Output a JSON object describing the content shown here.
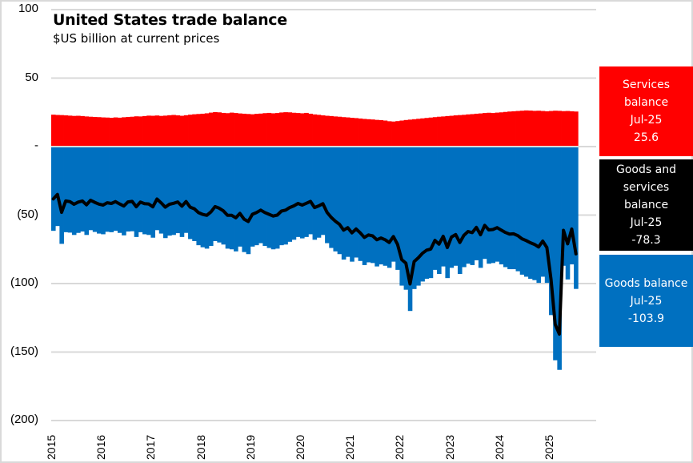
{
  "chart_data": {
    "type": "bar+line",
    "title": "United States trade balance",
    "subtitle": "$US billion at current prices",
    "xlabel": "",
    "ylabel": "",
    "ylim": [
      -200,
      100
    ],
    "yticks": [
      100,
      50,
      0,
      -50,
      -100,
      -150,
      -200
    ],
    "ytick_labels": [
      "100",
      "50",
      "-",
      "(50)",
      "(100)",
      "(150)",
      "(200)"
    ],
    "xtick_labels": [
      "2015",
      "2016",
      "2017",
      "2018",
      "2019",
      "2020",
      "2021",
      "2022",
      "2023",
      "2024",
      "2025"
    ],
    "start_month": "Jan-2015",
    "end_month": "Jul-2025",
    "grid": true,
    "colors": {
      "services": "#ff0000",
      "goods": "#0070c0",
      "total": "#000000",
      "grid": "#d9d9d9"
    },
    "series": [
      {
        "name": "Services balance",
        "type": "bar",
        "values": [
          23.3,
          23.1,
          23.0,
          22.8,
          22.6,
          22.4,
          22.5,
          22.3,
          22.0,
          21.8,
          21.6,
          21.5,
          21.3,
          21.2,
          21.0,
          21.3,
          21.1,
          21.4,
          21.6,
          21.8,
          22.1,
          22.0,
          22.3,
          22.6,
          22.5,
          22.7,
          22.4,
          22.6,
          22.9,
          23.1,
          22.8,
          22.5,
          22.9,
          23.3,
          23.6,
          23.8,
          24.0,
          24.3,
          24.8,
          25.2,
          25.0,
          24.6,
          24.4,
          24.8,
          24.5,
          24.2,
          24.0,
          23.8,
          23.6,
          23.9,
          24.1,
          24.4,
          24.6,
          24.3,
          24.5,
          24.9,
          25.1,
          25.0,
          24.7,
          24.5,
          24.3,
          24.6,
          24.0,
          23.5,
          23.2,
          22.8,
          22.5,
          22.3,
          22.0,
          21.8,
          21.5,
          21.3,
          21.0,
          20.8,
          20.5,
          20.2,
          20.0,
          19.8,
          19.5,
          19.3,
          19.0,
          18.5,
          18.3,
          18.6,
          19.0,
          19.4,
          19.7,
          20.0,
          20.3,
          20.6,
          20.9,
          21.2,
          21.5,
          21.8,
          22.0,
          22.3,
          22.5,
          22.8,
          23.0,
          23.2,
          23.5,
          23.7,
          24.0,
          24.2,
          24.5,
          24.7,
          24.5,
          24.8,
          25.0,
          25.3,
          25.6,
          25.8,
          26.0,
          26.2,
          26.4,
          26.3,
          26.1,
          26.2,
          26.0,
          25.8,
          26.0,
          26.2,
          26.1,
          25.9,
          26.0,
          25.8,
          25.6
        ]
      },
      {
        "name": "Goods balance",
        "type": "bar",
        "values": [
          -61.5,
          -58.0,
          -71.0,
          -62.5,
          -62.8,
          -64.5,
          -63.0,
          -62.0,
          -64.5,
          -61.0,
          -62.3,
          -63.5,
          -64.0,
          -62.2,
          -62.5,
          -61.5,
          -63.0,
          -64.8,
          -62.0,
          -61.8,
          -66.0,
          -62.5,
          -64.0,
          -64.5,
          -66.5,
          -61.0,
          -63.5,
          -66.8,
          -65.0,
          -64.5,
          -63.2,
          -66.0,
          -63.0,
          -67.5,
          -69.0,
          -72.0,
          -73.5,
          -74.5,
          -72.5,
          -69.0,
          -70.0,
          -71.5,
          -74.5,
          -75.0,
          -76.5,
          -73.0,
          -77.0,
          -78.5,
          -73.0,
          -72.0,
          -70.5,
          -72.5,
          -74.0,
          -75.0,
          -74.5,
          -72.0,
          -71.5,
          -69.5,
          -68.0,
          -66.0,
          -67.0,
          -66.0,
          -64.0,
          -68.0,
          -66.5,
          -64.5,
          -70.5,
          -74.0,
          -76.5,
          -78.5,
          -82.5,
          -80.5,
          -84.0,
          -81.0,
          -83.5,
          -86.5,
          -84.5,
          -85.0,
          -87.5,
          -86.0,
          -87.0,
          -88.5,
          -84.0,
          -90.0,
          -101.5,
          -104.5,
          -120.0,
          -104.0,
          -101.5,
          -98.5,
          -96.5,
          -96.0,
          -90.0,
          -93.0,
          -87.5,
          -96.0,
          -88.5,
          -87.0,
          -93.0,
          -88.0,
          -85.5,
          -86.5,
          -83.0,
          -88.5,
          -82.0,
          -85.5,
          -85.0,
          -84.0,
          -86.0,
          -88.0,
          -89.5,
          -89.5,
          -91.0,
          -93.5,
          -95.0,
          -96.5,
          -97.5,
          -99.5,
          -95.0,
          -99.5,
          -123.0,
          -156.0,
          -163.0,
          -87.0,
          -97.0,
          -86.0,
          -103.9
        ]
      },
      {
        "name": "Goods and services balance",
        "type": "line",
        "values": [
          -38.2,
          -34.9,
          -48.0,
          -39.7,
          -40.2,
          -42.1,
          -40.5,
          -39.7,
          -42.5,
          -39.2,
          -40.7,
          -42.0,
          -42.7,
          -41.0,
          -41.5,
          -40.2,
          -41.9,
          -43.4,
          -40.4,
          -40.0,
          -43.9,
          -40.5,
          -41.7,
          -41.9,
          -44.0,
          -38.3,
          -41.1,
          -44.2,
          -42.1,
          -41.4,
          -40.4,
          -43.5,
          -40.1,
          -44.2,
          -45.4,
          -48.2,
          -49.5,
          -50.2,
          -47.7,
          -43.8,
          -45.0,
          -46.9,
          -50.1,
          -50.2,
          -52.0,
          -48.8,
          -53.0,
          -54.7,
          -49.4,
          -48.1,
          -46.4,
          -48.1,
          -49.4,
          -50.7,
          -50.0,
          -47.1,
          -46.4,
          -44.5,
          -43.3,
          -41.5,
          -42.7,
          -41.4,
          -40.0,
          -44.5,
          -43.3,
          -41.7,
          -48.0,
          -51.7,
          -54.5,
          -56.7,
          -61.0,
          -59.2,
          -63.0,
          -60.2,
          -63.0,
          -66.3,
          -64.5,
          -65.2,
          -68.0,
          -66.7,
          -68.0,
          -70.0,
          -65.7,
          -71.4,
          -82.5,
          -85.1,
          -100.3,
          -84.0,
          -81.2,
          -77.9,
          -75.6,
          -74.8,
          -68.5,
          -71.2,
          -65.5,
          -73.7,
          -66.0,
          -64.2,
          -70.0,
          -64.8,
          -62.0,
          -62.8,
          -59.0,
          -64.3,
          -57.5,
          -60.8,
          -60.5,
          -59.2,
          -61.0,
          -62.7,
          -63.9,
          -63.7,
          -65.0,
          -67.3,
          -68.6,
          -70.2,
          -71.4,
          -73.3,
          -69.0,
          -73.7,
          -97.0,
          -129.8,
          -136.9,
          -61.1,
          -71.0,
          -60.2,
          -78.3
        ]
      }
    ]
  },
  "labels": {
    "services": {
      "name_lines": [
        "Services",
        "balance"
      ],
      "period": "Jul-25",
      "value": "25.6"
    },
    "total": {
      "name_lines": [
        "Goods and",
        "services",
        "balance"
      ],
      "period": "Jul-25",
      "value": "-78.3"
    },
    "goods": {
      "name_lines": [
        "Goods balance"
      ],
      "period": "Jul-25",
      "value": "-103.9"
    }
  }
}
